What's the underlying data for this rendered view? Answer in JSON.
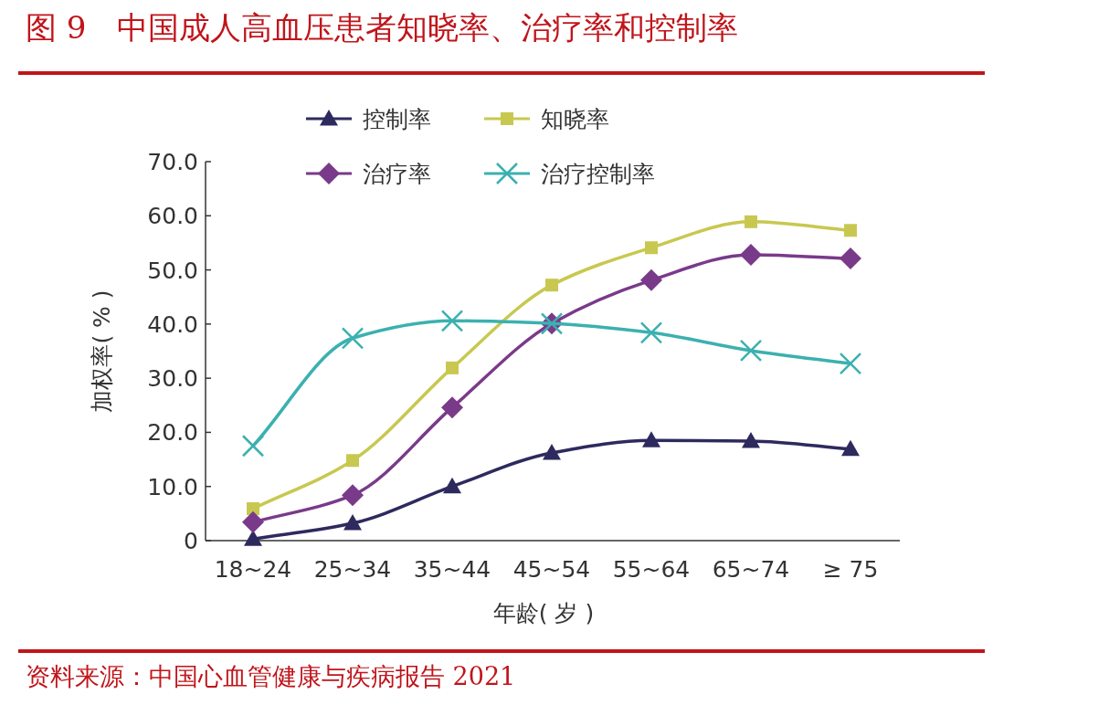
{
  "chart_data": {
    "type": "line",
    "title": "图 9　中国成人高血压患者知晓率、治疗率和控制率",
    "xlabel": "年龄( 岁 )",
    "ylabel": "加权率( % )",
    "annotations": [
      "资料来源：中国心血管健康与疾病报告 2021"
    ],
    "categories": [
      "18~24",
      "25~34",
      "35~44",
      "45~54",
      "55~64",
      "65~74",
      "≥ 75"
    ],
    "series": [
      {
        "name": "控制率",
        "color": "#2e2a5e",
        "marker": "triangle",
        "values": [
          0.3,
          3.2,
          10.0,
          16.2,
          18.5,
          18.4,
          16.9
        ]
      },
      {
        "name": "知晓率",
        "color": "#c8c850",
        "marker": "square",
        "values": [
          5.9,
          14.8,
          31.9,
          47.2,
          54.1,
          58.9,
          57.3
        ]
      },
      {
        "name": "治疗率",
        "color": "#7a3a8a",
        "marker": "diamond",
        "values": [
          3.4,
          8.4,
          24.6,
          40.1,
          48.1,
          52.8,
          52.1
        ]
      },
      {
        "name": "治疗控制率",
        "color": "#3cb0b0",
        "marker": "cross",
        "values": [
          17.5,
          37.4,
          40.6,
          40.1,
          38.4,
          35.1,
          32.7
        ]
      }
    ],
    "ylim": [
      0,
      70
    ],
    "yticks": [
      0,
      {
        "value": 10,
        "label": "10.0"
      },
      {
        "value": 20,
        "label": "20.0"
      },
      {
        "value": 30,
        "label": "30.0"
      },
      {
        "value": 40,
        "label": "40.0"
      },
      {
        "value": 50,
        "label": "50.0"
      },
      {
        "value": 60,
        "label": "60.0"
      },
      {
        "value": 70,
        "label": "70.0"
      }
    ],
    "legend": "top",
    "grid": false
  }
}
